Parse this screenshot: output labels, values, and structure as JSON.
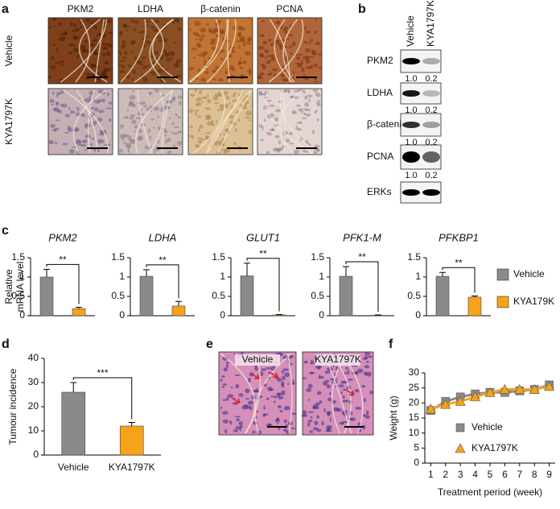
{
  "panel_labels": [
    "a",
    "b",
    "c",
    "d",
    "e",
    "f"
  ],
  "panel_a": {
    "stains": [
      "PKM2",
      "LDHA",
      "β-catenin",
      "PCNA"
    ],
    "groups": [
      "Vehicle",
      "KYA1797K"
    ]
  },
  "panel_b": {
    "lanes": [
      "Vehicle",
      "KYA1797K"
    ],
    "bands": [
      {
        "name": "PKM2",
        "ratios": [
          "1.0",
          "0.2"
        ]
      },
      {
        "name": "LDHA",
        "ratios": [
          "1.0",
          "0.2"
        ]
      },
      {
        "name": "β-catenin",
        "ratios": [
          "1.0",
          "0.2"
        ]
      },
      {
        "name": "PCNA",
        "ratios": [
          "1.0",
          "0.2"
        ]
      },
      {
        "name": "ERKs"
      }
    ]
  },
  "panel_c": {
    "ylabel": [
      "Relative",
      "mRNA level"
    ],
    "legend": [
      {
        "name": "Vehicle",
        "color": "#8a8a8a"
      },
      {
        "name": "KYA179K",
        "color": "#f7a21b"
      }
    ]
  },
  "panel_e": {
    "groups": [
      "Vehicle",
      "KYA1797K"
    ]
  },
  "chart_data": [
    {
      "type": "bar",
      "title": "PKM2",
      "values": [
        1.0,
        0.18
      ],
      "errors": [
        0.2,
        0.04
      ],
      "ylim": [
        0,
        1.5
      ],
      "yticks": [
        0,
        0.5,
        1,
        1.5
      ],
      "annotation": "**"
    },
    {
      "type": "bar",
      "title": "LDHA",
      "values": [
        1.02,
        0.25
      ],
      "errors": [
        0.17,
        0.12
      ],
      "ylim": [
        0,
        1.5
      ],
      "yticks": [
        0,
        0.5,
        1,
        1.5
      ],
      "annotation": "**"
    },
    {
      "type": "bar",
      "title": "GLUT1",
      "values": [
        1.03,
        0.02
      ],
      "errors": [
        0.33,
        0.01
      ],
      "ylim": [
        0,
        1.5
      ],
      "yticks": [
        0,
        0.5,
        1,
        1.5
      ],
      "annotation": "**"
    },
    {
      "type": "bar",
      "title": "PFK1-M",
      "values": [
        1.02,
        0.01
      ],
      "errors": [
        0.25,
        0.01
      ],
      "ylim": [
        0,
        1.5
      ],
      "yticks": [
        0,
        0.5,
        1,
        1.5
      ],
      "annotation": "**"
    },
    {
      "type": "bar",
      "title": "PFKBP1",
      "values": [
        1.02,
        0.48
      ],
      "errors": [
        0.1,
        0.03
      ],
      "ylim": [
        0,
        1.5
      ],
      "yticks": [
        0,
        0.5,
        1,
        1.5
      ],
      "annotation": "**"
    },
    {
      "type": "bar",
      "ylabel": "Tumour incidence",
      "categories": [
        "Vehicle",
        "KYA1797K"
      ],
      "values": [
        26,
        12
      ],
      "errors": [
        4,
        1.5
      ],
      "colors": [
        "#8a8a8a",
        "#f7a21b"
      ],
      "ylim": [
        0,
        40
      ],
      "yticks": [
        0,
        10,
        20,
        30,
        40
      ],
      "annotation": "***"
    },
    {
      "type": "line",
      "ylabel": "Weight (g)",
      "xlabel": "Treatment period (week)",
      "x": [
        1,
        2,
        3,
        4,
        5,
        6,
        7,
        8,
        9
      ],
      "xlim": [
        0.6,
        9.4
      ],
      "xticks": [
        1,
        2,
        3,
        4,
        5,
        6,
        7,
        8,
        9
      ],
      "ylim": [
        0,
        30
      ],
      "yticks": [
        0,
        5,
        10,
        15,
        20,
        25,
        30
      ],
      "legend": "center-right",
      "series": [
        {
          "name": "Vehicle",
          "color": "#8a8a8a",
          "marker": "square",
          "values": [
            17.5,
            20.5,
            22,
            23,
            23.5,
            23.5,
            24,
            24.5,
            26
          ]
        },
        {
          "name": "KYA1797K",
          "color": "#f7a21b",
          "marker": "triangle",
          "values": [
            18,
            19.5,
            20.5,
            22,
            23.5,
            24.5,
            24.5,
            24.5,
            25.5
          ]
        }
      ]
    }
  ]
}
